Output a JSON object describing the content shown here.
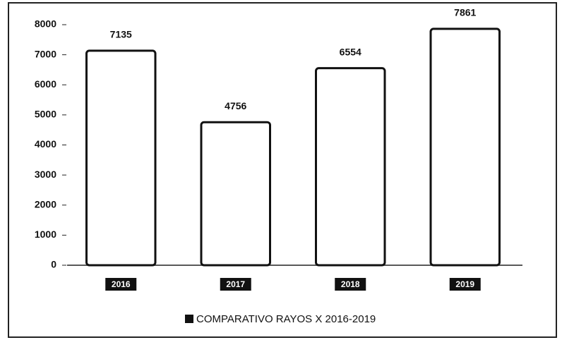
{
  "chart_data": {
    "type": "bar",
    "categories": [
      "2016",
      "2017",
      "2018",
      "2019"
    ],
    "series": [
      {
        "name": "COMPARATIVO RAYOS X 2016-2019",
        "color": "#ffffff",
        "values": [
          7135,
          4756,
          6554,
          7861
        ]
      }
    ],
    "ylim": [
      0,
      8000
    ],
    "yticks": [
      0,
      1000,
      2000,
      3000,
      4000,
      5000,
      6000,
      7000,
      8000
    ],
    "legend": "bottom"
  }
}
